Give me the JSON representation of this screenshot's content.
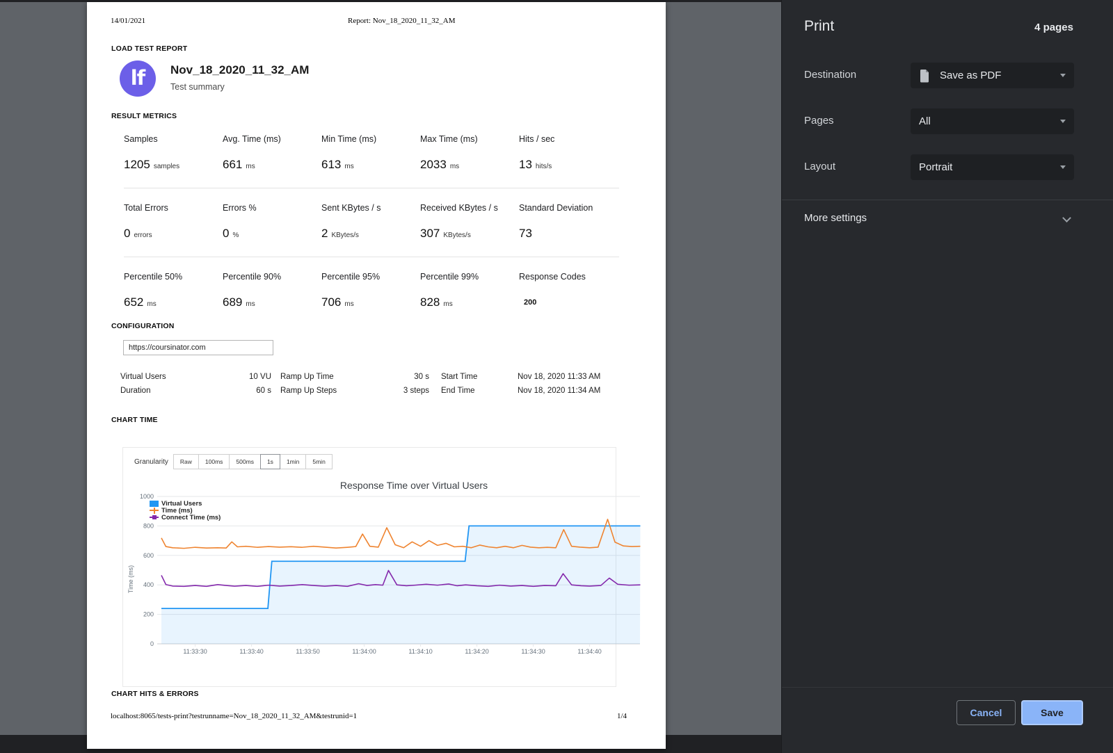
{
  "preview": {
    "header": {
      "date": "14/01/2021",
      "report": "Report: Nov_18_2020_11_32_AM"
    },
    "footer": {
      "url": "localhost:8065/tests-print?testrunname=Nov_18_2020_11_32_AM&testrunid=1",
      "page": "1/4"
    },
    "report": {
      "section_label": "LOAD TEST REPORT",
      "logo_text": "lf",
      "title": "Nov_18_2020_11_32_AM",
      "subtitle": "Test summary",
      "metrics_heading": "RESULT METRICS",
      "metrics": [
        [
          {
            "label": "Samples",
            "value": "1205",
            "unit": "samples"
          },
          {
            "label": "Avg. Time (ms)",
            "value": "661",
            "unit": "ms"
          },
          {
            "label": "Min Time (ms)",
            "value": "613",
            "unit": "ms"
          },
          {
            "label": "Max Time (ms)",
            "value": "2033",
            "unit": "ms"
          },
          {
            "label": "Hits / sec",
            "value": "13",
            "unit": "hits/s"
          }
        ],
        [
          {
            "label": "Total Errors",
            "value": "0",
            "unit": "errors"
          },
          {
            "label": "Errors %",
            "value": "0",
            "unit": "%"
          },
          {
            "label": "Sent KBytes / s",
            "value": "2",
            "unit": "KBytes/s"
          },
          {
            "label": "Received KBytes / s",
            "value": "307",
            "unit": "KBytes/s"
          },
          {
            "label": "Standard Deviation",
            "value": "73",
            "unit": ""
          }
        ],
        [
          {
            "label": "Percentile 50%",
            "value": "652",
            "unit": "ms"
          },
          {
            "label": "Percentile 90%",
            "value": "689",
            "unit": "ms"
          },
          {
            "label": "Percentile 95%",
            "value": "706",
            "unit": "ms"
          },
          {
            "label": "Percentile 99%",
            "value": "828",
            "unit": "ms"
          },
          {
            "label": "Response Codes",
            "value": "200",
            "unit": "",
            "small": true
          }
        ]
      ],
      "configuration_heading": "CONFIGURATION",
      "url_value": "https://coursinator.com",
      "config_rows": [
        {
          "l1": "Virtual Users",
          "v1": "10 VU",
          "l2": "Ramp Up Time",
          "v2": "30 s",
          "l3": "Start Time",
          "v3": "Nov 18, 2020 11:33 AM"
        },
        {
          "l1": "Duration",
          "v1": "60 s",
          "l2": "Ramp Up Steps",
          "v2": "3 steps",
          "l3": "End Time",
          "v3": "Nov 18, 2020 11:34 AM"
        }
      ],
      "chart_time_heading": "CHART TIME",
      "granularity_label": "Granularity",
      "granularity_options": [
        "Raw",
        "100ms",
        "500ms",
        "1s",
        "1min",
        "5min"
      ],
      "granularity_selected": "1s",
      "chart_hits_heading": "CHART HITS & ERRORS"
    }
  },
  "chart_data": {
    "type": "line",
    "title": "Response Time over Virtual Users",
    "ylabel": "Time (ms)",
    "ylim": [
      0,
      1000
    ],
    "yticks": [
      0,
      200,
      400,
      600,
      800,
      1000
    ],
    "grid": true,
    "legend_position": "top-left",
    "x_domain_seconds": [
      0,
      85
    ],
    "x_start_time": "11:33:24",
    "xtick_t": [
      6,
      16,
      26,
      36,
      46,
      56,
      66,
      76
    ],
    "xticklabels": [
      "11:33:30",
      "11:33:40",
      "11:33:50",
      "11:34:00",
      "11:34:10",
      "11:34:20",
      "11:34:30",
      "11:34:40"
    ],
    "series": [
      {
        "name": "Virtual Users",
        "type": "step-area",
        "color": "#2196f3",
        "fill": "rgba(33,150,243,0.10)",
        "points": [
          [
            0,
            240
          ],
          [
            18.9,
            240
          ],
          [
            19.6,
            560
          ],
          [
            53.9,
            560
          ],
          [
            54.6,
            800
          ],
          [
            85,
            800
          ]
        ]
      },
      {
        "name": "Time (ms)",
        "type": "line",
        "color": "#ef8430",
        "points": [
          [
            0,
            718
          ],
          [
            0.8,
            660
          ],
          [
            2,
            652
          ],
          [
            4,
            648
          ],
          [
            6,
            655
          ],
          [
            8,
            650
          ],
          [
            10,
            652
          ],
          [
            11.5,
            650
          ],
          [
            12.5,
            692
          ],
          [
            13.5,
            658
          ],
          [
            15,
            662
          ],
          [
            17,
            655
          ],
          [
            19,
            660
          ],
          [
            21,
            656
          ],
          [
            23,
            659
          ],
          [
            25,
            655
          ],
          [
            27,
            662
          ],
          [
            29,
            656
          ],
          [
            31,
            650
          ],
          [
            33,
            655
          ],
          [
            34.5,
            660
          ],
          [
            35.7,
            745
          ],
          [
            37,
            662
          ],
          [
            38.5,
            656
          ],
          [
            40,
            788
          ],
          [
            41.5,
            672
          ],
          [
            43,
            652
          ],
          [
            44.5,
            692
          ],
          [
            46,
            662
          ],
          [
            47.5,
            700
          ],
          [
            49,
            668
          ],
          [
            50.5,
            682
          ],
          [
            52,
            658
          ],
          [
            53.5,
            662
          ],
          [
            55,
            652
          ],
          [
            56.5,
            670
          ],
          [
            58,
            658
          ],
          [
            59.5,
            652
          ],
          [
            61,
            662
          ],
          [
            62.5,
            652
          ],
          [
            64,
            668
          ],
          [
            65.5,
            656
          ],
          [
            67,
            652
          ],
          [
            68.5,
            655
          ],
          [
            70,
            652
          ],
          [
            71.4,
            775
          ],
          [
            72.8,
            662
          ],
          [
            74.3,
            656
          ],
          [
            76,
            652
          ],
          [
            77.5,
            656
          ],
          [
            79.2,
            845
          ],
          [
            80.5,
            690
          ],
          [
            82,
            664
          ],
          [
            83.5,
            660
          ],
          [
            85,
            662
          ]
        ]
      },
      {
        "name": "Connect Time (ms)",
        "type": "line",
        "color": "#8429ac",
        "points": [
          [
            0,
            465
          ],
          [
            0.8,
            402
          ],
          [
            2,
            392
          ],
          [
            4,
            390
          ],
          [
            6,
            396
          ],
          [
            8,
            390
          ],
          [
            10,
            402
          ],
          [
            11.5,
            396
          ],
          [
            13,
            391
          ],
          [
            15,
            396
          ],
          [
            17,
            390
          ],
          [
            19,
            398
          ],
          [
            21,
            392
          ],
          [
            23,
            396
          ],
          [
            25,
            402
          ],
          [
            27,
            396
          ],
          [
            29,
            391
          ],
          [
            31,
            396
          ],
          [
            33,
            390
          ],
          [
            35,
            408
          ],
          [
            36.5,
            396
          ],
          [
            38,
            402
          ],
          [
            39.3,
            398
          ],
          [
            40.3,
            498
          ],
          [
            41.8,
            400
          ],
          [
            43.5,
            394
          ],
          [
            45,
            398
          ],
          [
            47,
            404
          ],
          [
            49,
            398
          ],
          [
            51,
            406
          ],
          [
            52.5,
            394
          ],
          [
            54,
            400
          ],
          [
            56,
            394
          ],
          [
            58,
            390
          ],
          [
            60,
            398
          ],
          [
            62,
            392
          ],
          [
            64,
            396
          ],
          [
            66,
            390
          ],
          [
            68,
            396
          ],
          [
            70,
            394
          ],
          [
            71.3,
            476
          ],
          [
            72.8,
            400
          ],
          [
            74.5,
            394
          ],
          [
            76,
            392
          ],
          [
            78,
            396
          ],
          [
            79.5,
            446
          ],
          [
            81,
            404
          ],
          [
            83,
            398
          ],
          [
            85,
            400
          ]
        ]
      }
    ]
  },
  "print_panel": {
    "title": "Print",
    "pages_count": "4 pages",
    "rows": [
      {
        "label": "Destination",
        "value": "Save as PDF"
      },
      {
        "label": "Pages",
        "value": "All"
      },
      {
        "label": "Layout",
        "value": "Portrait"
      }
    ],
    "more_settings": "More settings",
    "cancel": "Cancel",
    "save": "Save",
    "accent": "#8ab4f8"
  }
}
